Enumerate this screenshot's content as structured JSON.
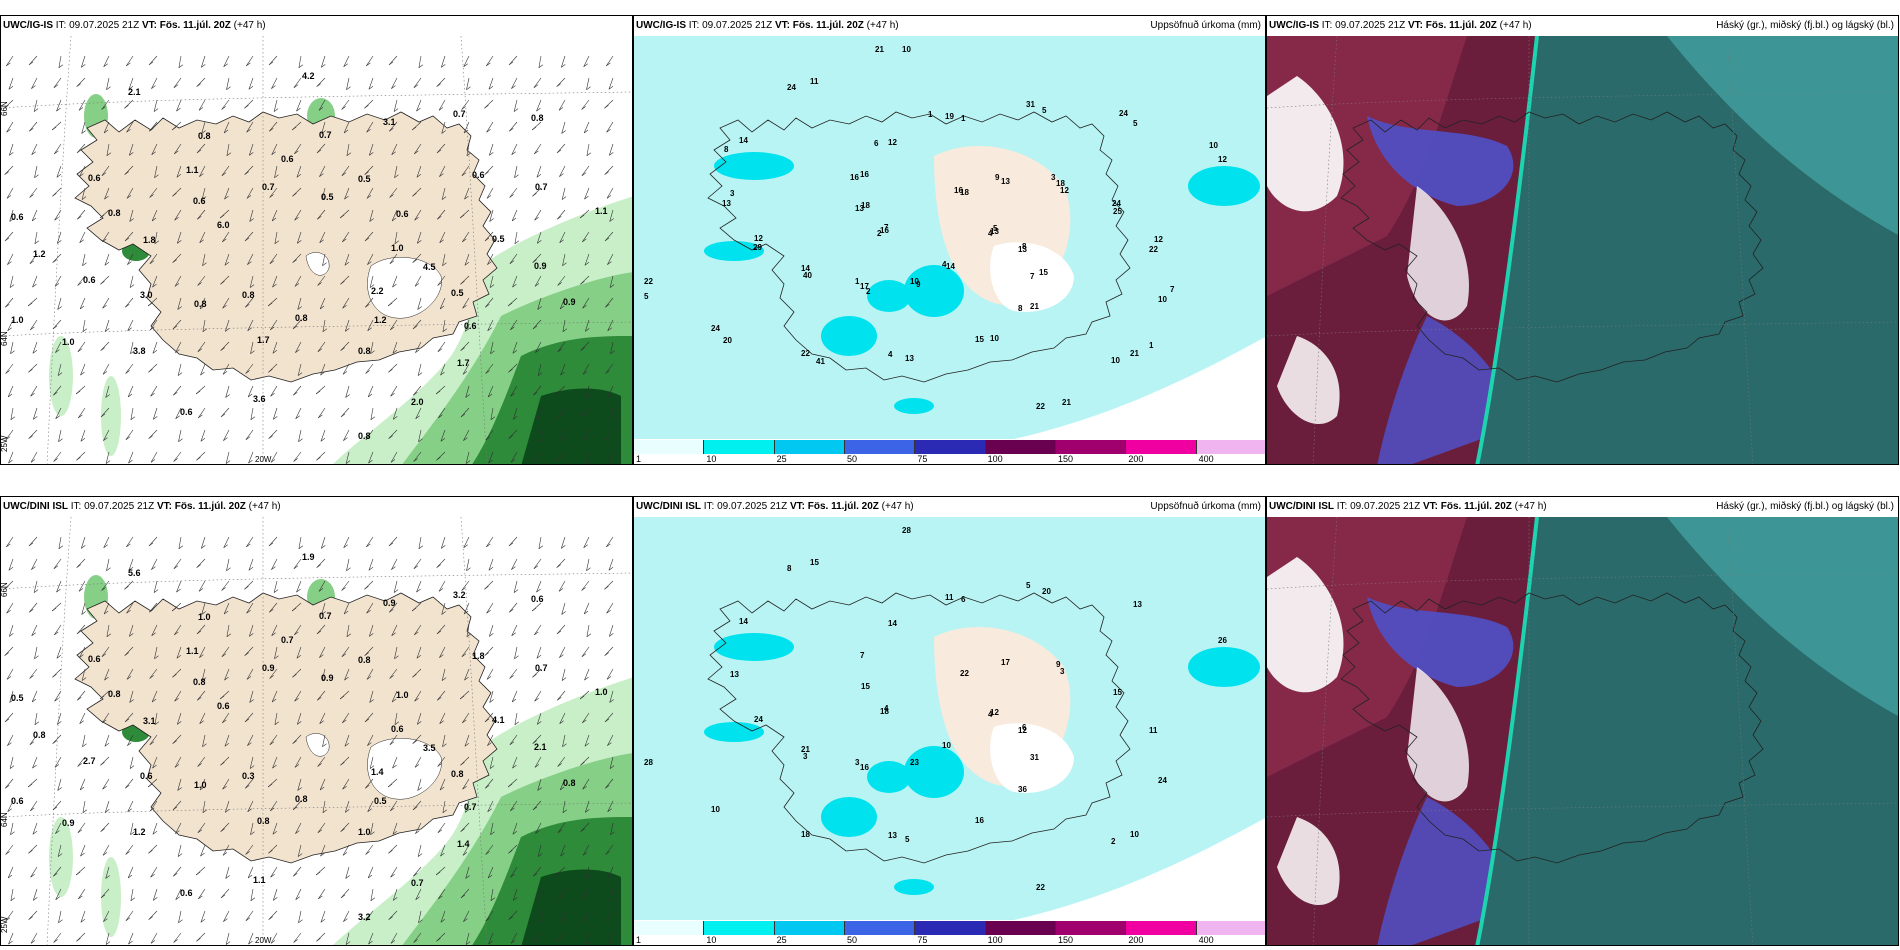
{
  "panels": [
    {
      "model": "UWC/IG-IS",
      "it": "IT: 09.07.2025 21Z",
      "vt": "VT: Fös. 11.júl. 20Z",
      "lead": "(+47 h)",
      "right": ""
    },
    {
      "model": "UWC/IG-IS",
      "it": "IT: 09.07.2025 21Z",
      "vt": "VT: Fös. 11.júl. 20Z",
      "lead": "(+47 h)",
      "right": "Uppsöfnuð úrkoma (mm)"
    },
    {
      "model": "UWC/IG-IS",
      "it": "IT: 09.07.2025 21Z",
      "vt": "VT: Fös. 11.júl. 20Z",
      "lead": "(+47 h)",
      "right": "Háský (gr.), miðský (fj.bl.) og lágský (bl.)"
    },
    {
      "model": "UWC/DINI ISL",
      "it": "IT: 09.07.2025 21Z",
      "vt": "VT: Fös. 11.júl. 20Z",
      "lead": "(+47 h)",
      "right": ""
    },
    {
      "model": "UWC/DINI ISL",
      "it": "IT: 09.07.2025 21Z",
      "vt": "VT: Fös. 11.júl. 20Z",
      "lead": "(+47 h)",
      "right": "Uppsöfnuð úrkoma (mm)"
    },
    {
      "model": "UWC/DINI ISL",
      "it": "IT: 09.07.2025 21Z",
      "vt": "VT: Fös. 11.júl. 20Z",
      "lead": "(+47 h)",
      "right": "Háský (gr.), miðský (fj.bl.) og lágský (bl.)"
    }
  ],
  "axis_labels": {
    "lon20": "20W",
    "lat66": "66N",
    "lat64": "64N",
    "lon25": "25W"
  },
  "colorbar": {
    "ticks": [
      "1",
      "10",
      "25",
      "50",
      "75",
      "100",
      "150",
      "200",
      "400"
    ],
    "colors": [
      "#e8feff",
      "#00f0f0",
      "#00c8f0",
      "#3c64e6",
      "#2a2ab4",
      "#6a0050",
      "#a0006e",
      "#f000a0",
      "#f0b4f0"
    ]
  },
  "wind_panel_top": {
    "values": [
      "1.0",
      "0.8",
      "0.7",
      "1.7",
      "0.6",
      "0.6",
      "1.7",
      "0.8",
      "0.9",
      "1.0",
      "0.5",
      "0.8",
      "0.6",
      "1.1",
      "0.8",
      "0.6",
      "0.6",
      "1.2",
      "0.8",
      "0.8",
      "1.1",
      "0.9",
      "1.0",
      "0.5",
      "1.2",
      "0.8",
      "0.7",
      "0.6",
      "0.7",
      "0.5",
      "0.6",
      "0.7",
      "0.8",
      "0.6",
      "0.5",
      "3.8",
      "4.2",
      "2.2",
      "1.8",
      "0.6",
      "3.6",
      "2.1",
      "4.5",
      "3.0",
      "3.1",
      "2.0",
      "6.0"
    ]
  },
  "precip_panel_top": {
    "values": [
      "4",
      "1",
      "1",
      "10",
      "7",
      "12",
      "4",
      "11",
      "13",
      "14",
      "5",
      "22",
      "18",
      "25",
      "22",
      "10",
      "7",
      "12",
      "5",
      "4",
      "16",
      "22",
      "24",
      "18",
      "8",
      "3",
      "12",
      "10",
      "12",
      "10",
      "22",
      "13",
      "15",
      "14",
      "13",
      "17",
      "19",
      "21",
      "16",
      "18",
      "13",
      "24",
      "8",
      "40",
      "31",
      "21",
      "13",
      "24",
      "41",
      "21",
      "15",
      "29",
      "24",
      "14",
      "16",
      "12",
      "20",
      "16",
      "21",
      "13",
      "10",
      "9",
      "6",
      "7",
      "5",
      "9",
      "10",
      "8",
      "5",
      "2",
      "1",
      "1",
      "2",
      "3"
    ]
  },
  "wind_panel_bottom": {
    "values": [
      "0.6",
      "1.0",
      "0.7",
      "1.4",
      "0.5",
      "1.0",
      "0.8",
      "1.0",
      "0.8",
      "0.6",
      "0.8",
      "1.0",
      "0.6",
      "1.0",
      "0.3",
      "0.7",
      "0.7",
      "0.8",
      "0.6",
      "0.8",
      "1.1",
      "2.1",
      "0.9",
      "0.9",
      "0.5",
      "0.8",
      "0.7",
      "0.6",
      "0.9",
      "0.8",
      "2.7",
      "3.2",
      "3.2",
      "0.8",
      "4.1",
      "1.2",
      "1.9",
      "1.4",
      "3.1",
      "1.8",
      "1.1",
      "5.6",
      "3.5",
      "0.6",
      "0.9",
      "0.7",
      "0.6"
    ]
  },
  "precip_panel_bottom": {
    "values": [
      "4",
      "3",
      "6",
      "2",
      "4",
      "3",
      "13",
      "15",
      "12",
      "21",
      "20",
      "22",
      "15",
      "15",
      "18",
      "28",
      "31",
      "24",
      "13",
      "10",
      "7",
      "11",
      "10",
      "22",
      "36",
      "13",
      "26",
      "23",
      "14",
      "24",
      "28",
      "17",
      "16",
      "14",
      "12",
      "16",
      "11",
      "10",
      "18",
      "9",
      "5",
      "8",
      "6",
      "3",
      "5"
    ]
  }
}
